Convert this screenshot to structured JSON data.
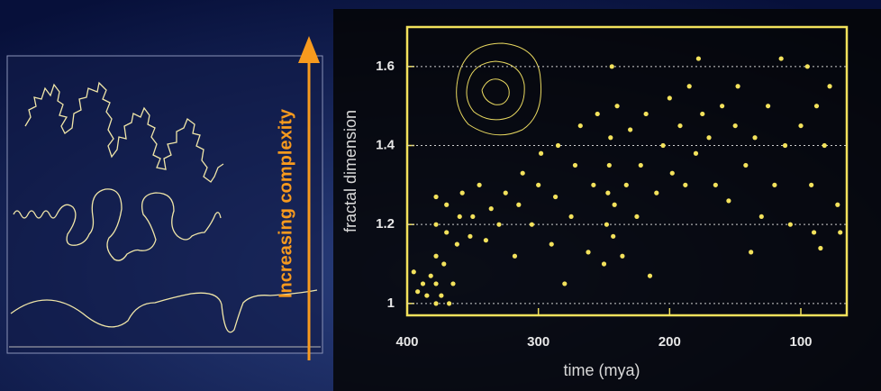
{
  "chart_data": {
    "type": "scatter",
    "side_label": "Increasing complexity",
    "xlabel": "time (mya)",
    "ylabel": "fractal dimension",
    "color": "#f3e25c",
    "grid": true,
    "xlim": [
      400,
      65
    ],
    "xticks": [
      400,
      300,
      200,
      100
    ],
    "ylim": [
      0.97,
      1.7
    ],
    "yticks": [
      1.6,
      1.4,
      1.2,
      1
    ],
    "x": [
      395,
      392,
      388,
      385,
      382,
      378,
      378,
      378,
      378,
      378,
      374,
      372,
      370,
      370,
      368,
      365,
      362,
      360,
      358,
      352,
      350,
      345,
      340,
      336,
      330,
      325,
      318,
      315,
      312,
      305,
      300,
      298,
      290,
      287,
      285,
      280,
      275,
      272,
      268,
      262,
      258,
      255,
      250,
      248,
      247,
      246,
      245,
      244,
      243,
      242,
      240,
      236,
      233,
      230,
      225,
      222,
      218,
      215,
      210,
      205,
      200,
      198,
      192,
      188,
      185,
      180,
      178,
      175,
      170,
      165,
      160,
      155,
      150,
      148,
      142,
      138,
      135,
      130,
      125,
      120,
      115,
      112,
      108,
      100,
      95,
      92,
      90,
      88,
      85,
      82,
      78,
      72,
      70
    ],
    "y": [
      1.08,
      1.03,
      1.05,
      1.02,
      1.07,
      1.0,
      1.05,
      1.12,
      1.2,
      1.27,
      1.02,
      1.1,
      1.18,
      1.25,
      1.0,
      1.05,
      1.15,
      1.22,
      1.28,
      1.17,
      1.22,
      1.3,
      1.16,
      1.24,
      1.2,
      1.28,
      1.12,
      1.25,
      1.33,
      1.2,
      1.3,
      1.38,
      1.15,
      1.27,
      1.4,
      1.05,
      1.22,
      1.35,
      1.45,
      1.13,
      1.3,
      1.48,
      1.1,
      1.2,
      1.28,
      1.35,
      1.42,
      1.6,
      1.17,
      1.25,
      1.5,
      1.12,
      1.3,
      1.44,
      1.22,
      1.35,
      1.48,
      1.07,
      1.28,
      1.4,
      1.52,
      1.33,
      1.45,
      1.3,
      1.55,
      1.38,
      1.62,
      1.48,
      1.42,
      1.3,
      1.5,
      1.26,
      1.45,
      1.55,
      1.35,
      1.13,
      1.42,
      1.22,
      1.5,
      1.3,
      1.62,
      1.4,
      1.2,
      1.45,
      1.6,
      1.3,
      1.18,
      1.5,
      1.14,
      1.4,
      1.55,
      1.25,
      1.18
    ]
  }
}
